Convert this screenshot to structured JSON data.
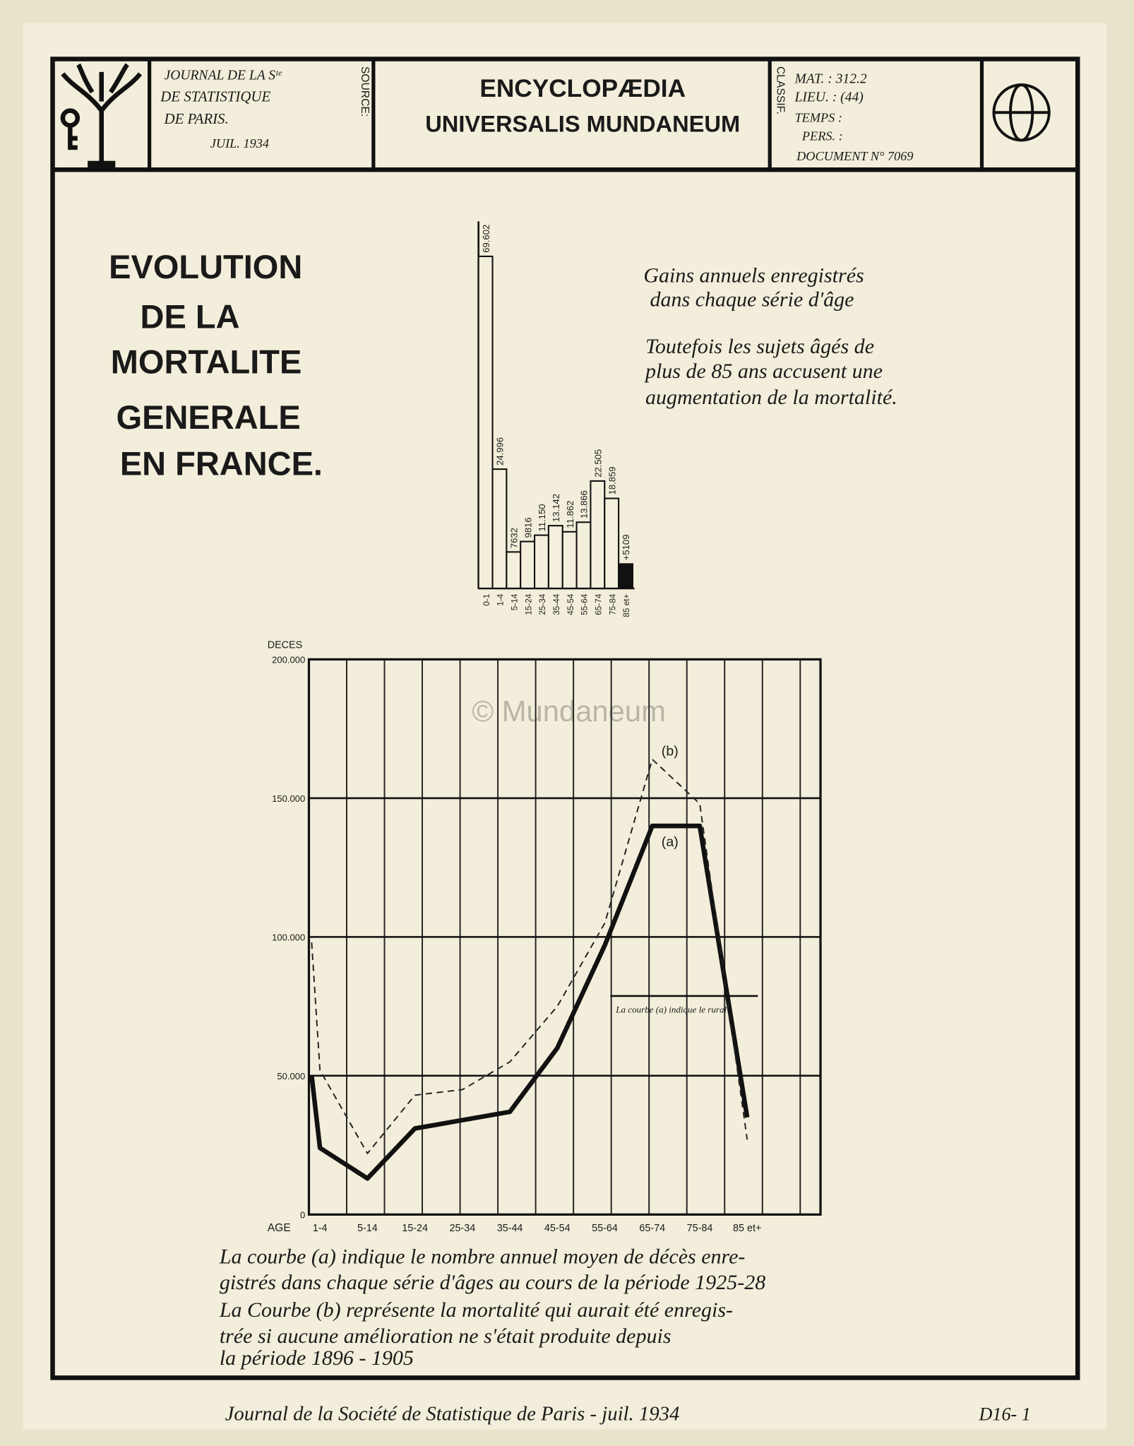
{
  "header": {
    "source": [
      "JOURNAL DE LA Sᵗᵉ",
      "DE STATISTIQUE",
      "DE PARIS.",
      "JUIL. 1934"
    ],
    "source_label": "SOURCE:",
    "name": [
      "ENCYCLOPÆDIA",
      "UNIVERSALIS MUNDANEUM"
    ],
    "classif_label": "CLASSIF.",
    "classif": [
      "MAT. :  312.2",
      "LIEU. :  (44)",
      "TEMPS :",
      "PERS. :",
      "DOCUMENT N° 7069"
    ]
  },
  "title": [
    "EVOLUTION",
    "DE LA",
    "MORTALITE",
    "GENERALE",
    "EN FRANCE."
  ],
  "notes": [
    "Gains annuels enregistrés",
    "dans chaque série d'âge",
    "Toutefois les sujets âgés de",
    "plus de 85 ans accusent une",
    "augmentation de la mortalité."
  ],
  "chart_data": [
    {
      "type": "bar",
      "categories": [
        "0-1",
        "1-4",
        "5-14",
        "15-24",
        "25-34",
        "35-44",
        "45-54",
        "55-64",
        "65-74",
        "75-84",
        "85 et+"
      ],
      "values": [
        69602,
        24996,
        7632,
        9816,
        11150,
        13142,
        11862,
        13866,
        22505,
        18859,
        5109
      ],
      "value_labels": [
        "69.602",
        "24.996",
        "7632",
        "9816",
        "11.150",
        "13.142",
        "11.862",
        "13.866",
        "22.505",
        "18.859",
        "+5109"
      ],
      "colors": [
        "#f4efdc",
        "#f4efdc",
        "#f4efdc",
        "#f4efdc",
        "#f4efdc",
        "#f4efdc",
        "#f4efdc",
        "#f4efdc",
        "#f4efdc",
        "#f4efdc",
        "#111111"
      ]
    },
    {
      "type": "line",
      "y_label": "DECES",
      "x_label": "AGE",
      "categories": [
        null,
        "1-4",
        "5-14",
        "15-24",
        "25-34",
        "35-44",
        "45-54",
        "55-64",
        "65-74",
        "75-84",
        "85 et+"
      ],
      "series": [
        {
          "name": "(a)",
          "color": "#111111",
          "style": "solid",
          "values": [
            50000,
            24000,
            13000,
            31000,
            34000,
            37000,
            60000,
            97000,
            140000,
            140000,
            35000
          ]
        },
        {
          "name": "(b)",
          "color": "#222222",
          "style": "dashed",
          "values": [
            98000,
            52000,
            22000,
            43000,
            45000,
            55000,
            75000,
            105000,
            164000,
            148000,
            27000
          ]
        }
      ],
      "ylim": [
        0,
        200000
      ],
      "yticks": [
        0,
        {
          "value": 50000,
          "label": "50.000"
        },
        {
          "value": 100000,
          "label": "100.000"
        },
        {
          "value": 150000,
          "label": "150.000"
        },
        {
          "value": 200000,
          "label": "200.000"
        }
      ],
      "grid": true,
      "annotation": "La courbe (a) indique le rural"
    }
  ],
  "caption": [
    "La courbe (a) indique le nombre annuel moyen de décès enre-",
    "gistrés dans chaque série d'âges au cours de la période 1925-28",
    "La Courbe (b) représente la mortalité qui aurait été enregis-",
    "trée si aucune amélioration ne s'était produite depuis",
    "la période  1896 - 1905"
  ],
  "footer": [
    "Journal de la Société de Statistique de Paris - juil. 1934",
    "D16- 1"
  ],
  "watermark": "© Mundaneum"
}
